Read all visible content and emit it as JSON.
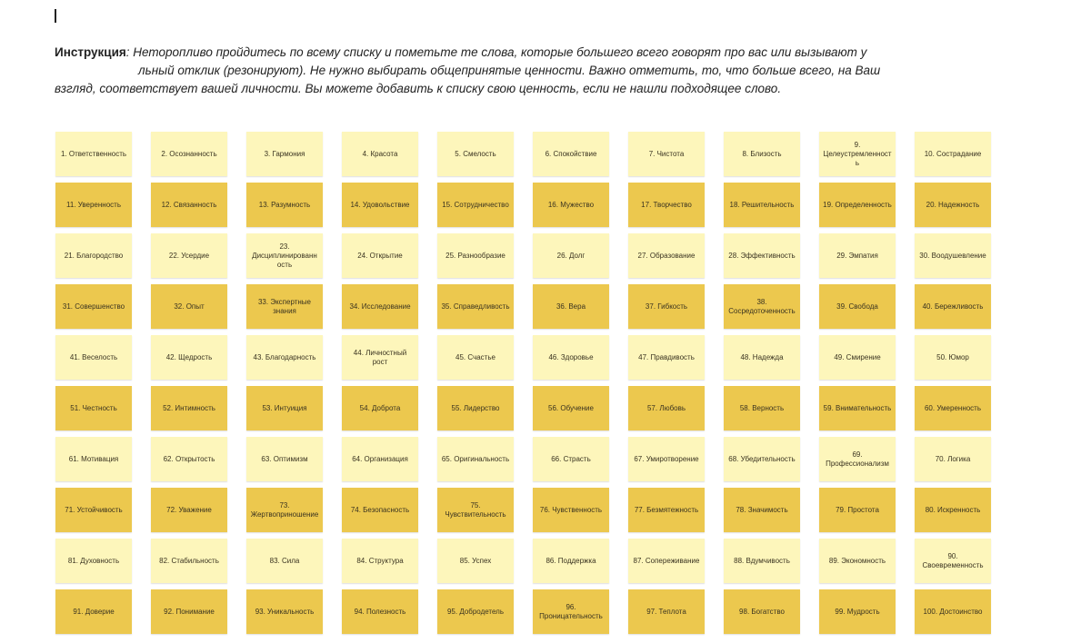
{
  "instruction": {
    "label": "Инструкция",
    "line1": ": Неторопливо пройдитесь по всему списку и пометьте те слова, которые большего всего говорят про вас или вызывают у",
    "line2": "льный отклик (резонируют). Не нужно выбирать общепринятые ценности. Важно отметить, то, что больше всего, на Ваш",
    "line3": "взгляд,  соответствует вашей личности. Вы можете добавить к списку свою ценность, если не нашли подходящее слово."
  },
  "colors": {
    "light_note": "#fdf6bb",
    "dark_note": "#ecc84e"
  },
  "values": [
    "1. Ответственность",
    "2. Осознанность",
    "3. Гармония",
    "4. Красота",
    "5. Смелость",
    "6. Спокойствие",
    "7. Чистота",
    "8. Близость",
    "9. Целеустремленность",
    "10. Сострадание",
    "11. Уверенность",
    "12. Связанность",
    "13. Разумность",
    "14. Удовольствие",
    "15. Сотрудничество",
    "16. Мужество",
    "17. Творчество",
    "18. Решительность",
    "19. Определенность",
    "20. Надежность",
    "21. Благородство",
    "22. Усердие",
    "23. Дисциплинированность",
    "24. Открытие",
    "25. Разнообразие",
    "26. Долг",
    "27. Образование",
    "28. Эффективность",
    "29. Эмпатия",
    "30. Воодушевление",
    "31. Совершенство",
    "32. Опыт",
    "33. Экспертные знания",
    "34. Исследование",
    "35. Справедливость",
    "36. Вера",
    "37. Гибкость",
    "38. Сосредоточенность",
    "39. Свобода",
    "40. Бережливость",
    "41. Веселость",
    "42. Щедрость",
    "43. Благодарность",
    "44. Личностный рост",
    "45. Счастье",
    "46. Здоровье",
    "47. Правдивость",
    "48. Надежда",
    "49. Смирение",
    "50. Юмор",
    "51. Честность",
    "52. Интимность",
    "53. Интуиция",
    "54. Доброта",
    "55. Лидерство",
    "56. Обучение",
    "57. Любовь",
    "58. Верность",
    "59. Внимательность",
    "60. Умеренность",
    "61. Мотивация",
    "62. Открытость",
    "63. Оптимизм",
    "64. Организация",
    "65. Оригинальность",
    "66. Страсть",
    "67. Умиротворение",
    "68. Убедительность",
    "69. Профессионализм",
    "70. Логика",
    "71. Устойчивость",
    "72. Уважение",
    "73. Жертвоприношение",
    "74. Безопасность",
    "75. Чувствительность",
    "76. Чувственность",
    "77. Безмятежность",
    "78. Значимость",
    "79. Простота",
    "80. Искренность",
    "81. Духовность",
    "82. Стабильность",
    "83. Сила",
    "84. Структура",
    "85. Успех",
    "86. Поддержка",
    "87. Сопереживание",
    "88. Вдумчивость",
    "89. Экономность",
    "90. Своевременность",
    "91. Доверие",
    "92. Понимание",
    "93. Уникальность",
    "94. Полезность",
    "95. Добродетель",
    "96. Проницательность",
    "97. Теплота",
    "98. Богатство",
    "99. Мудрость",
    "100. Достоинство"
  ]
}
